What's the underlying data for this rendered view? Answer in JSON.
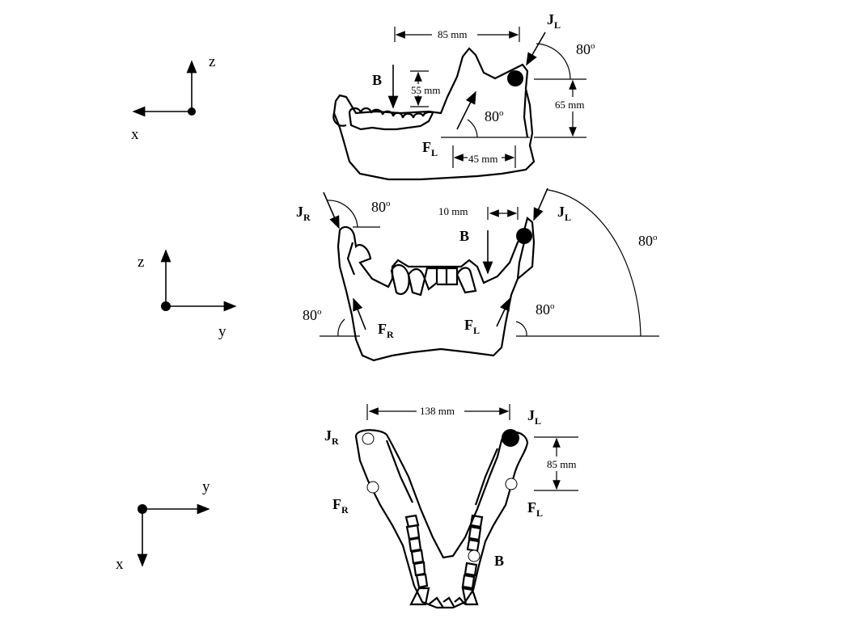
{
  "axes": {
    "lateral": {
      "h": "x",
      "v": "z"
    },
    "frontal": {
      "h": "y",
      "v": "z"
    },
    "occlusal": {
      "h": "y",
      "v": "x"
    }
  },
  "labels": {
    "J": "J",
    "F": "F",
    "B": "B",
    "L": "L",
    "R": "R",
    "deg": "80",
    "o": "o"
  },
  "dimensions": {
    "condyle_distance": "85 mm",
    "bite_height": "55 mm",
    "joint_height": "65 mm",
    "muscle_offset": "45 mm",
    "bite_offset": "10 mm",
    "intercondylar_width": "138 mm",
    "joint_muscle_distance": "85 mm"
  }
}
